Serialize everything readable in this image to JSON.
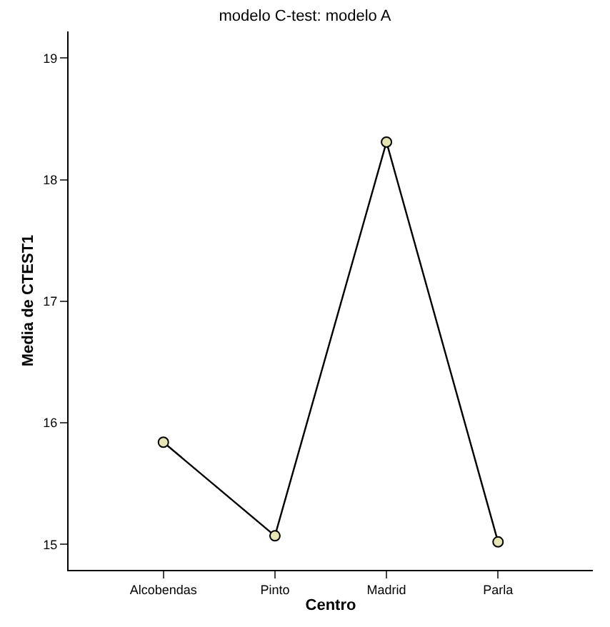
{
  "chart_data": {
    "type": "line",
    "title": "modelo C-test: modelo A",
    "xlabel": "Centro",
    "ylabel": "Media de CTEST1",
    "categories": [
      "Alcobendas",
      "Pinto",
      "Madrid",
      "Parla"
    ],
    "series": [
      {
        "color": "#000000",
        "values": [
          15.84,
          15.07,
          18.31,
          15.02
        ]
      }
    ],
    "ylim": [
      14.79,
      19.22
    ],
    "yticks": [
      15,
      16,
      17,
      18,
      19
    ],
    "marker": "circle",
    "line_style": "solid"
  }
}
